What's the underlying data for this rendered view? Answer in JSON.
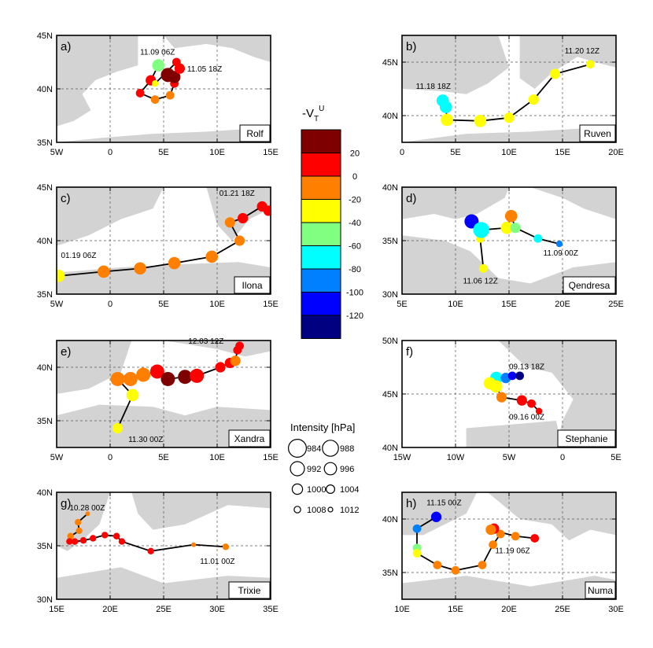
{
  "colorbar": {
    "title_main": "-V",
    "title_sub": "T",
    "title_sup": "U",
    "ticks": [
      "20",
      "0",
      "-20",
      "-40",
      "-60",
      "-80",
      "-100",
      "-120"
    ],
    "bins": [
      {
        "color": "#7f0000"
      },
      {
        "color": "#ff0000"
      },
      {
        "color": "#ff8000"
      },
      {
        "color": "#ffff00"
      },
      {
        "color": "#80ff80"
      },
      {
        "color": "#00ffff"
      },
      {
        "color": "#0080ff"
      },
      {
        "color": "#0000ff"
      },
      {
        "color": "#000080"
      }
    ]
  },
  "intensity_legend": {
    "title": "Intensity [hPa]",
    "entries": [
      {
        "label": "984",
        "value": 984
      },
      {
        "label": "988",
        "value": 988
      },
      {
        "label": "992",
        "value": 992
      },
      {
        "label": "996",
        "value": 996
      },
      {
        "label": "1000",
        "value": 1000
      },
      {
        "label": "1004",
        "value": 1004
      },
      {
        "label": "1008",
        "value": 1008
      },
      {
        "label": "1012",
        "value": 1012
      }
    ]
  },
  "chart_data": [
    {
      "type": "scatter",
      "panel": "a)",
      "name": "Rolf",
      "xlim": [
        -5,
        15
      ],
      "ylim": [
        35,
        45
      ],
      "xticks": [
        {
          "v": -5,
          "label": "5W"
        },
        {
          "v": 0,
          "label": "0"
        },
        {
          "v": 5,
          "label": "5E"
        },
        {
          "v": 10,
          "label": "10E"
        },
        {
          "v": 15,
          "label": "15E"
        }
      ],
      "yticks": [
        {
          "v": 35,
          "label": "35N"
        },
        {
          "v": 40,
          "label": "40N"
        },
        {
          "v": 45,
          "label": "45N"
        }
      ],
      "track": [
        {
          "lon": 4.5,
          "lat": 42.2,
          "p": 996,
          "c": "#80ff80"
        },
        {
          "lon": 3.8,
          "lat": 40.8,
          "p": 1000,
          "c": "#ff0000"
        },
        {
          "lon": 2.8,
          "lat": 39.6,
          "p": 1004,
          "c": "#ff0000"
        },
        {
          "lon": 4.2,
          "lat": 39.0,
          "p": 1004,
          "c": "#ff8000"
        },
        {
          "lon": 5.6,
          "lat": 39.4,
          "p": 1004,
          "c": "#ff8000"
        },
        {
          "lon": 6.0,
          "lat": 40.5,
          "p": 1004,
          "c": "#ff0000"
        },
        {
          "lon": 5.4,
          "lat": 41.3,
          "p": 992,
          "c": "#7f0000"
        },
        {
          "lon": 6.0,
          "lat": 41.1,
          "p": 996,
          "c": "#7f0000"
        },
        {
          "lon": 6.5,
          "lat": 41.9,
          "p": 1000,
          "c": "#ff0000"
        },
        {
          "lon": 6.2,
          "lat": 42.5,
          "p": 1004,
          "c": "#ff0000"
        },
        {
          "lon": 4.2,
          "lat": 40.5,
          "p": 1008,
          "c": "#ffff00"
        }
      ],
      "annotations": [
        {
          "text": "11.09 06Z",
          "lon": 2.8,
          "lat": 43.2
        },
        {
          "text": "11.05 18Z",
          "lon": 7.2,
          "lat": 41.6
        }
      ]
    },
    {
      "type": "scatter",
      "panel": "b)",
      "name": "Ruven",
      "xlim": [
        0,
        20
      ],
      "ylim": [
        37.5,
        47.5
      ],
      "xticks": [
        {
          "v": 0,
          "label": "0"
        },
        {
          "v": 5,
          "label": "5E"
        },
        {
          "v": 10,
          "label": "10E"
        },
        {
          "v": 15,
          "label": "15E"
        },
        {
          "v": 20,
          "label": "20E"
        }
      ],
      "yticks": [
        {
          "v": 40,
          "label": "40N"
        },
        {
          "v": 45,
          "label": "45N"
        }
      ],
      "track": [
        {
          "lon": 3.8,
          "lat": 41.4,
          "p": 996,
          "c": "#00ffff"
        },
        {
          "lon": 4.1,
          "lat": 40.8,
          "p": 996,
          "c": "#00ffff"
        },
        {
          "lon": 4.2,
          "lat": 39.6,
          "p": 996,
          "c": "#ffff00"
        },
        {
          "lon": 7.3,
          "lat": 39.5,
          "p": 996,
          "c": "#ffff00"
        },
        {
          "lon": 10.0,
          "lat": 39.8,
          "p": 1000,
          "c": "#ffff00"
        },
        {
          "lon": 12.3,
          "lat": 41.5,
          "p": 1000,
          "c": "#ffff00"
        },
        {
          "lon": 14.3,
          "lat": 43.9,
          "p": 1000,
          "c": "#ffff00"
        },
        {
          "lon": 17.6,
          "lat": 44.8,
          "p": 1004,
          "c": "#ffff00"
        }
      ],
      "annotations": [
        {
          "text": "11.20 12Z",
          "lon": 15.2,
          "lat": 45.8
        },
        {
          "text": "11.18 18Z",
          "lon": 1.3,
          "lat": 42.5
        }
      ]
    },
    {
      "type": "scatter",
      "panel": "c)",
      "name": "Ilona",
      "xlim": [
        -5,
        15
      ],
      "ylim": [
        35,
        45
      ],
      "xticks": [
        {
          "v": -5,
          "label": "5W"
        },
        {
          "v": 0,
          "label": "0"
        },
        {
          "v": 5,
          "label": "5E"
        },
        {
          "v": 10,
          "label": "10E"
        },
        {
          "v": 15,
          "label": "15E"
        }
      ],
      "yticks": [
        {
          "v": 35,
          "label": "35N"
        },
        {
          "v": 40,
          "label": "40N"
        },
        {
          "v": 45,
          "label": "45N"
        }
      ],
      "track": [
        {
          "lon": -4.8,
          "lat": 36.7,
          "p": 996,
          "c": "#ffff00"
        },
        {
          "lon": -0.6,
          "lat": 37.1,
          "p": 996,
          "c": "#ff8000"
        },
        {
          "lon": 2.8,
          "lat": 37.4,
          "p": 996,
          "c": "#ff8000"
        },
        {
          "lon": 6.0,
          "lat": 37.9,
          "p": 996,
          "c": "#ff8000"
        },
        {
          "lon": 9.5,
          "lat": 38.5,
          "p": 996,
          "c": "#ff8000"
        },
        {
          "lon": 12.1,
          "lat": 40.0,
          "p": 1000,
          "c": "#ff8000"
        },
        {
          "lon": 11.2,
          "lat": 41.7,
          "p": 1000,
          "c": "#ff8000"
        },
        {
          "lon": 12.4,
          "lat": 42.1,
          "p": 1000,
          "c": "#ff0000"
        },
        {
          "lon": 14.2,
          "lat": 43.2,
          "p": 1000,
          "c": "#ff0000"
        },
        {
          "lon": 14.8,
          "lat": 42.8,
          "p": 1000,
          "c": "#ff0000"
        }
      ],
      "annotations": [
        {
          "text": "01.21 18Z",
          "lon": 10.2,
          "lat": 44.2
        },
        {
          "text": "01.19 06Z",
          "lon": -4.6,
          "lat": 38.4
        }
      ]
    },
    {
      "type": "scatter",
      "panel": "d)",
      "name": "Qendresa",
      "xlim": [
        5,
        25
      ],
      "ylim": [
        30,
        40
      ],
      "xticks": [
        {
          "v": 5,
          "label": "5E"
        },
        {
          "v": 10,
          "label": "10E"
        },
        {
          "v": 15,
          "label": "15E"
        },
        {
          "v": 20,
          "label": "20E"
        },
        {
          "v": 25,
          "label": "25E"
        }
      ],
      "yticks": [
        {
          "v": 30,
          "label": "30N"
        },
        {
          "v": 35,
          "label": "35N"
        },
        {
          "v": 40,
          "label": "40N"
        }
      ],
      "track": [
        {
          "lon": 12.6,
          "lat": 32.4,
          "p": 1004,
          "c": "#ffff00"
        },
        {
          "lon": 12.3,
          "lat": 35.2,
          "p": 1004,
          "c": "#ffff00"
        },
        {
          "lon": 11.5,
          "lat": 36.8,
          "p": 992,
          "c": "#0000ff"
        },
        {
          "lon": 12.4,
          "lat": 36.0,
          "p": 988,
          "c": "#00ffff"
        },
        {
          "lon": 14.8,
          "lat": 36.2,
          "p": 996,
          "c": "#ffff00"
        },
        {
          "lon": 15.2,
          "lat": 37.3,
          "p": 996,
          "c": "#ff8000"
        },
        {
          "lon": 15.6,
          "lat": 36.2,
          "p": 1000,
          "c": "#80ff80"
        },
        {
          "lon": 17.7,
          "lat": 35.2,
          "p": 1004,
          "c": "#00ffff"
        },
        {
          "lon": 19.7,
          "lat": 34.7,
          "p": 1008,
          "c": "#0080ff"
        }
      ],
      "annotations": [
        {
          "text": "11.09 00Z",
          "lon": 18.2,
          "lat": 33.6
        },
        {
          "text": "11.06 12Z",
          "lon": 10.7,
          "lat": 31.0
        }
      ]
    },
    {
      "type": "scatter",
      "panel": "e)",
      "name": "Xandra",
      "xlim": [
        -5,
        15
      ],
      "ylim": [
        32.5,
        42.5
      ],
      "xticks": [
        {
          "v": -5,
          "label": "5W"
        },
        {
          "v": 0,
          "label": "0"
        },
        {
          "v": 5,
          "label": "5E"
        },
        {
          "v": 10,
          "label": "10E"
        },
        {
          "v": 15,
          "label": "15E"
        }
      ],
      "yticks": [
        {
          "v": 35,
          "label": "35N"
        },
        {
          "v": 40,
          "label": "40N"
        }
      ],
      "track": [
        {
          "lon": 0.7,
          "lat": 34.3,
          "p": 1000,
          "c": "#ffff00"
        },
        {
          "lon": 2.1,
          "lat": 37.4,
          "p": 996,
          "c": "#ffff00"
        },
        {
          "lon": 0.7,
          "lat": 38.9,
          "p": 992,
          "c": "#ff8000"
        },
        {
          "lon": 1.9,
          "lat": 38.9,
          "p": 992,
          "c": "#ff8000"
        },
        {
          "lon": 3.1,
          "lat": 39.3,
          "p": 992,
          "c": "#ff8000"
        },
        {
          "lon": 4.4,
          "lat": 39.6,
          "p": 992,
          "c": "#ff0000"
        },
        {
          "lon": 5.4,
          "lat": 38.9,
          "p": 992,
          "c": "#7f0000"
        },
        {
          "lon": 7.0,
          "lat": 39.1,
          "p": 992,
          "c": "#7f0000"
        },
        {
          "lon": 8.1,
          "lat": 39.2,
          "p": 992,
          "c": "#ff0000"
        },
        {
          "lon": 10.3,
          "lat": 40.0,
          "p": 1000,
          "c": "#ff0000"
        },
        {
          "lon": 11.2,
          "lat": 40.4,
          "p": 1000,
          "c": "#ff0000"
        },
        {
          "lon": 11.7,
          "lat": 40.6,
          "p": 1000,
          "c": "#ff8000"
        },
        {
          "lon": 11.9,
          "lat": 41.6,
          "p": 1004,
          "c": "#ff0000"
        },
        {
          "lon": 12.1,
          "lat": 42.0,
          "p": 1004,
          "c": "#ff0000"
        }
      ],
      "annotations": [
        {
          "text": "12.03 12Z",
          "lon": 7.3,
          "lat": 42.2
        },
        {
          "text": "11.30 00Z",
          "lon": 1.7,
          "lat": 33.0
        }
      ]
    },
    {
      "type": "scatter",
      "panel": "f)",
      "name": "Stephanie",
      "xlim": [
        -15,
        5
      ],
      "ylim": [
        40,
        50
      ],
      "xticks": [
        {
          "v": -15,
          "label": "15W"
        },
        {
          "v": -10,
          "label": "10W"
        },
        {
          "v": -5,
          "label": "5W"
        },
        {
          "v": 0,
          "label": "0"
        },
        {
          "v": 5,
          "label": "5E"
        }
      ],
      "yticks": [
        {
          "v": 40,
          "label": "40N"
        },
        {
          "v": 45,
          "label": "45N"
        },
        {
          "v": 50,
          "label": "50N"
        }
      ],
      "track": [
        {
          "lon": -6.2,
          "lat": 46.5,
          "p": 996,
          "c": "#00ffff"
        },
        {
          "lon": -5.3,
          "lat": 46.5,
          "p": 1000,
          "c": "#0080ff"
        },
        {
          "lon": -4.7,
          "lat": 46.7,
          "p": 1004,
          "c": "#0000ff"
        },
        {
          "lon": -4.0,
          "lat": 46.7,
          "p": 1004,
          "c": "#000080"
        },
        {
          "lon": -6.8,
          "lat": 46.0,
          "p": 996,
          "c": "#ffff00"
        },
        {
          "lon": -6.2,
          "lat": 45.7,
          "p": 996,
          "c": "#ffff00"
        },
        {
          "lon": -5.7,
          "lat": 44.7,
          "p": 1000,
          "c": "#ff8000"
        },
        {
          "lon": -3.8,
          "lat": 44.4,
          "p": 1000,
          "c": "#ff0000"
        },
        {
          "lon": -2.9,
          "lat": 44.1,
          "p": 1004,
          "c": "#ff0000"
        },
        {
          "lon": -2.2,
          "lat": 43.4,
          "p": 1008,
          "c": "#ff0000"
        }
      ],
      "annotations": [
        {
          "text": "09.13 18Z",
          "lon": -5.0,
          "lat": 47.3
        },
        {
          "text": "09.16 00Z",
          "lon": -5.0,
          "lat": 42.6
        }
      ]
    },
    {
      "type": "scatter",
      "panel": "g)",
      "name": "Trixie",
      "xlim": [
        15,
        35
      ],
      "ylim": [
        30,
        40
      ],
      "xticks": [
        {
          "v": 15,
          "label": "15E"
        },
        {
          "v": 20,
          "label": "20E"
        },
        {
          "v": 25,
          "label": "25E"
        },
        {
          "v": 30,
          "label": "30E"
        },
        {
          "v": 35,
          "label": "35E"
        }
      ],
      "yticks": [
        {
          "v": 30,
          "label": "30N"
        },
        {
          "v": 35,
          "label": "35N"
        },
        {
          "v": 40,
          "label": "40N"
        }
      ],
      "track": [
        {
          "lon": 17.9,
          "lat": 38.0,
          "p": 1012,
          "c": "#ff8000"
        },
        {
          "lon": 17.0,
          "lat": 37.2,
          "p": 1008,
          "c": "#ff8000"
        },
        {
          "lon": 17.1,
          "lat": 36.4,
          "p": 1008,
          "c": "#ff8000"
        },
        {
          "lon": 16.3,
          "lat": 35.9,
          "p": 1008,
          "c": "#ff8000"
        },
        {
          "lon": 16.2,
          "lat": 35.4,
          "p": 1008,
          "c": "#ff0000"
        },
        {
          "lon": 16.7,
          "lat": 35.4,
          "p": 1008,
          "c": "#ff0000"
        },
        {
          "lon": 17.5,
          "lat": 35.5,
          "p": 1008,
          "c": "#ff0000"
        },
        {
          "lon": 18.4,
          "lat": 35.7,
          "p": 1008,
          "c": "#ff0000"
        },
        {
          "lon": 19.5,
          "lat": 36.0,
          "p": 1008,
          "c": "#ff0000"
        },
        {
          "lon": 20.6,
          "lat": 35.9,
          "p": 1008,
          "c": "#ff0000"
        },
        {
          "lon": 21.1,
          "lat": 35.4,
          "p": 1008,
          "c": "#ff0000"
        },
        {
          "lon": 23.8,
          "lat": 34.5,
          "p": 1008,
          "c": "#ff0000"
        },
        {
          "lon": 27.8,
          "lat": 35.1,
          "p": 1012,
          "c": "#ff8000"
        },
        {
          "lon": 30.8,
          "lat": 34.9,
          "p": 1008,
          "c": "#ff8000"
        }
      ],
      "annotations": [
        {
          "text": "10.28 00Z",
          "lon": 16.2,
          "lat": 38.3
        },
        {
          "text": "11.01 00Z",
          "lon": 28.4,
          "lat": 33.3
        }
      ]
    },
    {
      "type": "scatter",
      "panel": "h)",
      "name": "Numa",
      "xlim": [
        10,
        30
      ],
      "ylim": [
        32.5,
        42.5
      ],
      "xticks": [
        {
          "v": 10,
          "label": "10E"
        },
        {
          "v": 15,
          "label": "15E"
        },
        {
          "v": 20,
          "label": "20E"
        },
        {
          "v": 25,
          "label": "25E"
        },
        {
          "v": 30,
          "label": "30E"
        }
      ],
      "yticks": [
        {
          "v": 35,
          "label": "35N"
        },
        {
          "v": 40,
          "label": "40N"
        }
      ],
      "track": [
        {
          "lon": 13.2,
          "lat": 40.2,
          "p": 1000,
          "c": "#0000ff"
        },
        {
          "lon": 11.4,
          "lat": 39.1,
          "p": 1004,
          "c": "#0080ff"
        },
        {
          "lon": 11.4,
          "lat": 37.3,
          "p": 1004,
          "c": "#80ff80"
        },
        {
          "lon": 11.4,
          "lat": 36.8,
          "p": 1004,
          "c": "#ffff00"
        },
        {
          "lon": 13.3,
          "lat": 35.7,
          "p": 1004,
          "c": "#ff8000"
        },
        {
          "lon": 15.0,
          "lat": 35.2,
          "p": 1004,
          "c": "#ff8000"
        },
        {
          "lon": 17.5,
          "lat": 35.7,
          "p": 1004,
          "c": "#ff8000"
        },
        {
          "lon": 18.5,
          "lat": 37.6,
          "p": 1004,
          "c": "#ff8000"
        },
        {
          "lon": 19.2,
          "lat": 38.6,
          "p": 1004,
          "c": "#ff8000"
        },
        {
          "lon": 18.6,
          "lat": 39.1,
          "p": 1000,
          "c": "#ff0000"
        },
        {
          "lon": 18.3,
          "lat": 39.0,
          "p": 1000,
          "c": "#ff8000"
        },
        {
          "lon": 20.6,
          "lat": 38.4,
          "p": 1004,
          "c": "#ff8000"
        },
        {
          "lon": 22.4,
          "lat": 38.2,
          "p": 1004,
          "c": "#ff0000"
        }
      ],
      "annotations": [
        {
          "text": "11.15 00Z",
          "lon": 12.3,
          "lat": 41.3
        },
        {
          "text": "11.19 06Z",
          "lon": 18.7,
          "lat": 36.8
        }
      ]
    }
  ]
}
